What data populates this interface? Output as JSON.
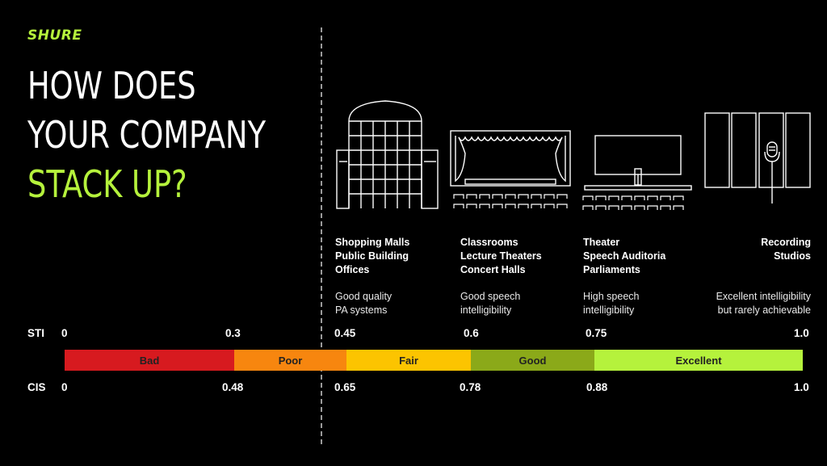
{
  "brand": {
    "logo_text": "SHURE"
  },
  "headline": {
    "line1": "HOW DOES",
    "line2": "YOUR COMPANY",
    "line3": "STACK UP?"
  },
  "colors": {
    "accent": "#b5f23c",
    "bad": "#d71a1f",
    "poor": "#f7860f",
    "fair": "#fcc400",
    "good": "#8ba919",
    "excellent": "#b5f23c"
  },
  "icons": [
    "shopping-mall-building-icon",
    "lecture-theater-icon",
    "theater-screen-icon",
    "recording-studio-icon"
  ],
  "categories": [
    {
      "lines": [
        "Shopping Malls",
        "Public Building",
        "Offices"
      ],
      "desc": [
        "Good quality",
        "PA systems"
      ]
    },
    {
      "lines": [
        "Classrooms",
        "Lecture Theaters",
        "Concert Halls"
      ],
      "desc": [
        "Good speech",
        "intelligibility"
      ]
    },
    {
      "lines": [
        "Theater",
        "Speech Auditoria",
        "Parliaments"
      ],
      "desc": [
        "High speech",
        "intelligibility"
      ]
    },
    {
      "lines": [
        "Recording",
        "Studios"
      ],
      "desc": [
        "Excellent intelligibility",
        "but rarely achievable"
      ]
    }
  ],
  "scale": {
    "sti_label": "STI",
    "cis_label": "CIS",
    "sti_ticks": [
      "0",
      "0.3",
      "0.45",
      "0.6",
      "0.75",
      "1.0"
    ],
    "cis_ticks": [
      "0",
      "0.48",
      "0.65",
      "0.78",
      "0.88",
      "1.0"
    ],
    "bands": [
      {
        "label": "Bad",
        "from": 0,
        "to": 0.3
      },
      {
        "label": "Poor",
        "from": 0.3,
        "to": 0.45
      },
      {
        "label": "Fair",
        "from": 0.45,
        "to": 0.6
      },
      {
        "label": "Good",
        "from": 0.6,
        "to": 0.75
      },
      {
        "label": "Excellent",
        "from": 0.75,
        "to": 1.0
      }
    ]
  }
}
